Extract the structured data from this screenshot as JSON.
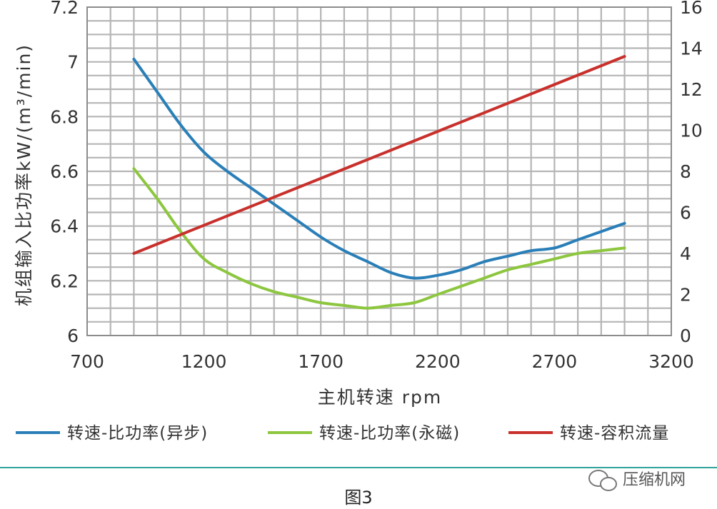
{
  "chart_data": {
    "type": "line",
    "xlabel": "主机转速 rpm",
    "ylabel": "机组输入比功率kW/(m³/min)",
    "xlim": [
      700,
      3200
    ],
    "x_ticks": [
      700,
      1200,
      1700,
      2200,
      2700,
      3200
    ],
    "ylim_left": [
      6,
      7.2
    ],
    "y_ticks_left": [
      "6",
      "6.2",
      "6.4",
      "6.6",
      "6.8",
      "7",
      "7.2"
    ],
    "ylim_right": [
      0,
      16
    ],
    "y_ticks_right": [
      "0",
      "2",
      "4",
      "6",
      "8",
      "10",
      "12",
      "14",
      "16"
    ],
    "grid": true,
    "legend_position": "bottom",
    "series": [
      {
        "name": "转速-比功率(异步)",
        "axis": "left",
        "color": "#2a7fb8",
        "x": [
          900,
          1000,
          1100,
          1200,
          1300,
          1400,
          1500,
          1600,
          1700,
          1800,
          1900,
          2000,
          2100,
          2200,
          2300,
          2400,
          2500,
          2600,
          2700,
          2800,
          2900,
          3000
        ],
        "y": [
          7.01,
          6.89,
          6.77,
          6.67,
          6.6,
          6.54,
          6.48,
          6.42,
          6.36,
          6.31,
          6.27,
          6.23,
          6.21,
          6.22,
          6.24,
          6.27,
          6.29,
          6.31,
          6.32,
          6.35,
          6.38,
          6.41
        ]
      },
      {
        "name": "转速-比功率(永磁)",
        "axis": "left",
        "color": "#8dc63f",
        "x": [
          900,
          1000,
          1100,
          1200,
          1300,
          1400,
          1500,
          1600,
          1700,
          1800,
          1900,
          2000,
          2100,
          2200,
          2300,
          2400,
          2500,
          2600,
          2700,
          2800,
          2900,
          3000
        ],
        "y": [
          6.61,
          6.5,
          6.38,
          6.28,
          6.23,
          6.19,
          6.16,
          6.14,
          6.12,
          6.11,
          6.1,
          6.11,
          6.12,
          6.15,
          6.18,
          6.21,
          6.24,
          6.26,
          6.28,
          6.3,
          6.31,
          6.32
        ]
      },
      {
        "name": "转速-容积流量",
        "axis": "right",
        "color": "#c8302c",
        "x": [
          900,
          3000
        ],
        "y": [
          4.0,
          13.6
        ]
      }
    ]
  },
  "caption": "图3",
  "watermark": "压缩机网"
}
